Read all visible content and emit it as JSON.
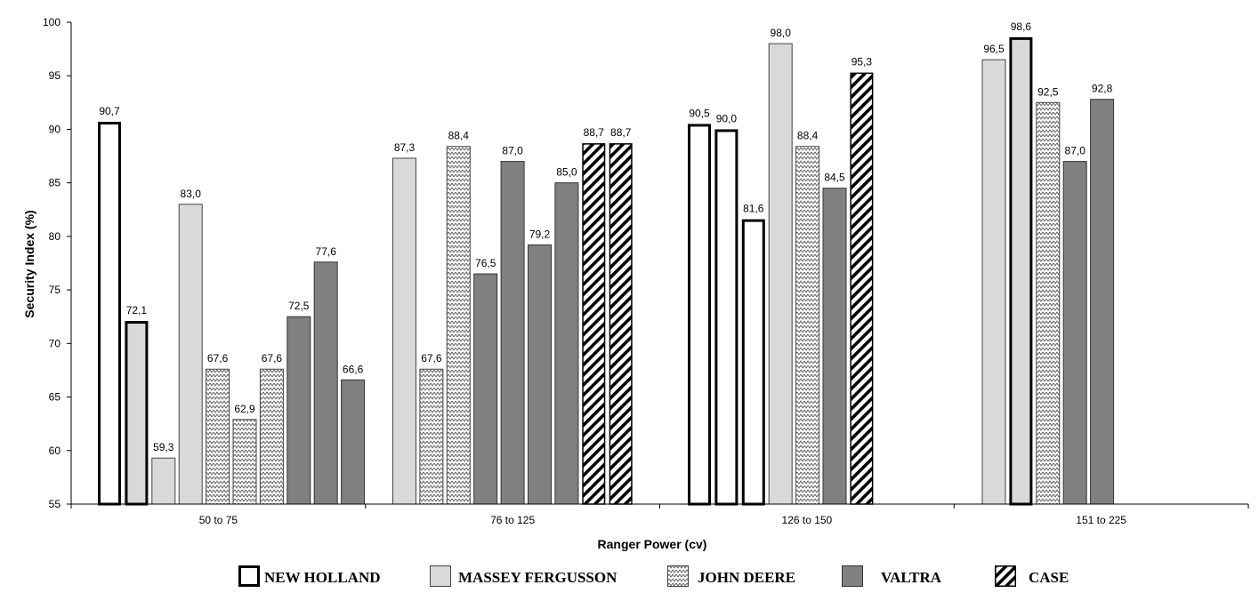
{
  "chart_data": {
    "type": "bar",
    "xlabel": "Ranger Power (cv)",
    "ylabel": "Security Index (%)",
    "ylim": [
      55,
      100
    ],
    "yticks": [
      "55",
      "60",
      "65",
      "70",
      "75",
      "80",
      "85",
      "90",
      "95",
      "100"
    ],
    "grid": false,
    "legend_position": "bottom",
    "categories": [
      "50 to 75",
      "76 to 125",
      "126 to 150",
      "151 to 225"
    ],
    "series": [
      {
        "name": "NEW HOLLAND",
        "style": "white fill, thick black outline"
      },
      {
        "name": "MASSEY FERGUSSON",
        "style": "light gray fill"
      },
      {
        "name": "JOHN DEERE",
        "style": "zigzag pattern"
      },
      {
        "name": "VALTRA",
        "style": "dark gray fill"
      },
      {
        "name": "CASE",
        "style": "diagonal hatch"
      }
    ],
    "groups": [
      {
        "category": "50 to 75",
        "bars": [
          {
            "series": "NEW HOLLAND",
            "fill": "white",
            "value": 90.7,
            "label": "90,7"
          },
          {
            "series": "NEW HOLLAND",
            "fill": "light",
            "value": 72.1,
            "label": "72,1"
          },
          {
            "series": "MASSEY FERGUSSON",
            "value": 59.3,
            "label": "59,3"
          },
          {
            "series": "MASSEY FERGUSSON",
            "value": 83.0,
            "label": "83,0"
          },
          {
            "series": "JOHN DEERE",
            "value": 67.6,
            "label": "67,6"
          },
          {
            "series": "JOHN DEERE",
            "value": 62.9,
            "label": "62,9"
          },
          {
            "series": "JOHN DEERE",
            "value": 67.6,
            "label": "67,6"
          },
          {
            "series": "VALTRA",
            "value": 72.5,
            "label": "72,5"
          },
          {
            "series": "VALTRA",
            "value": 77.6,
            "label": "77,6"
          },
          {
            "series": "VALTRA",
            "value": 66.6,
            "label": "66,6"
          }
        ]
      },
      {
        "category": "76 to 125",
        "bars": [
          {
            "series": "MASSEY FERGUSSON",
            "value": 87.3,
            "label": "87,3"
          },
          {
            "series": "JOHN DEERE",
            "value": 67.6,
            "label": "67,6"
          },
          {
            "series": "JOHN DEERE",
            "value": 88.4,
            "label": "88,4"
          },
          {
            "series": "VALTRA",
            "value": 76.5,
            "label": "76,5"
          },
          {
            "series": "VALTRA",
            "value": 87.0,
            "label": "87,0"
          },
          {
            "series": "VALTRA",
            "value": 79.2,
            "label": "79,2"
          },
          {
            "series": "VALTRA",
            "value": 85.0,
            "label": "85,0"
          },
          {
            "series": "CASE",
            "value": 88.7,
            "label": "88,7"
          },
          {
            "series": "CASE",
            "value": 88.7,
            "label": "88,7"
          }
        ]
      },
      {
        "category": "126 to 150",
        "bars": [
          {
            "series": "NEW HOLLAND",
            "value": 90.5,
            "label": "90,5"
          },
          {
            "series": "NEW HOLLAND",
            "value": 90.0,
            "label": "90,0"
          },
          {
            "series": "NEW HOLLAND",
            "value": 81.6,
            "label": "81,6"
          },
          {
            "series": "MASSEY FERGUSSON",
            "value": 98.0,
            "label": "98,0"
          },
          {
            "series": "JOHN DEERE",
            "value": 88.4,
            "label": "88,4"
          },
          {
            "series": "VALTRA",
            "value": 84.5,
            "label": "84,5"
          },
          {
            "series": "CASE",
            "value": 95.3,
            "label": "95,3"
          }
        ]
      },
      {
        "category": "151 to 225",
        "bars": [
          {
            "series": "MASSEY FERGUSSON",
            "value": 96.5,
            "label": "96,5"
          },
          {
            "series": "NEW HOLLAND",
            "fill": "light",
            "value": 98.6,
            "label": "98,6"
          },
          {
            "series": "JOHN DEERE",
            "value": 92.5,
            "label": "92,5"
          },
          {
            "series": "VALTRA",
            "value": 87.0,
            "label": "87,0"
          },
          {
            "series": "VALTRA",
            "value": 92.8,
            "label": "92,8"
          }
        ]
      }
    ],
    "colors": {
      "light": "#d9d9d9",
      "dark": "#808080",
      "outline": "#000000",
      "zigzag_bg": "#ffffff",
      "zigzag_line": "#555555"
    }
  }
}
